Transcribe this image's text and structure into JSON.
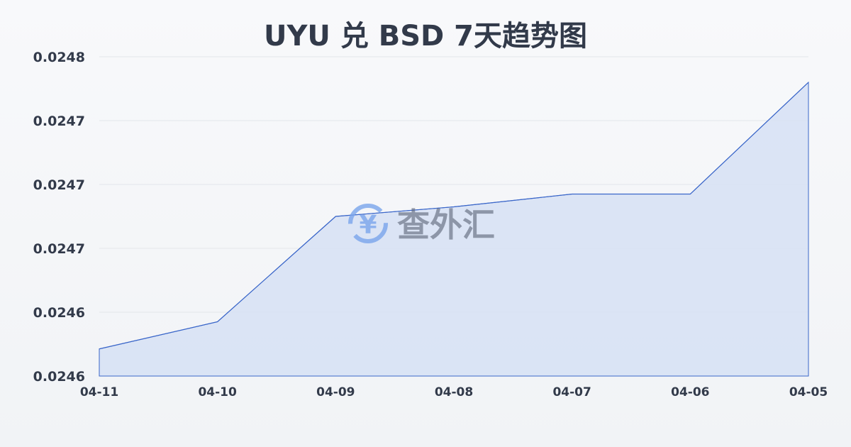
{
  "chart_data": {
    "type": "area",
    "title": "UYU 兑 BSD 7天趋势图",
    "categories": [
      "04-11",
      "04-10",
      "04-09",
      "04-08",
      "04-07",
      "04-06",
      "04-05"
    ],
    "values": [
      0.024597,
      0.024614,
      0.02468,
      0.024686,
      0.024694,
      0.024694,
      0.024764
    ],
    "ylim": [
      0.02458,
      0.02478
    ],
    "yticks": [
      0.02458,
      0.02462,
      0.02466,
      0.0247,
      0.02474,
      0.02478
    ],
    "ytick_labels": [
      "0.0246",
      "0.0246",
      "0.0247",
      "0.0247",
      "0.0247",
      "0.0248"
    ],
    "grid": true,
    "line_color": "#3a66c9",
    "fill_color": "#d6e0f5"
  },
  "watermark": {
    "text": "查外汇",
    "icon": "yen-exchange-icon",
    "color": "#6f9de8"
  }
}
